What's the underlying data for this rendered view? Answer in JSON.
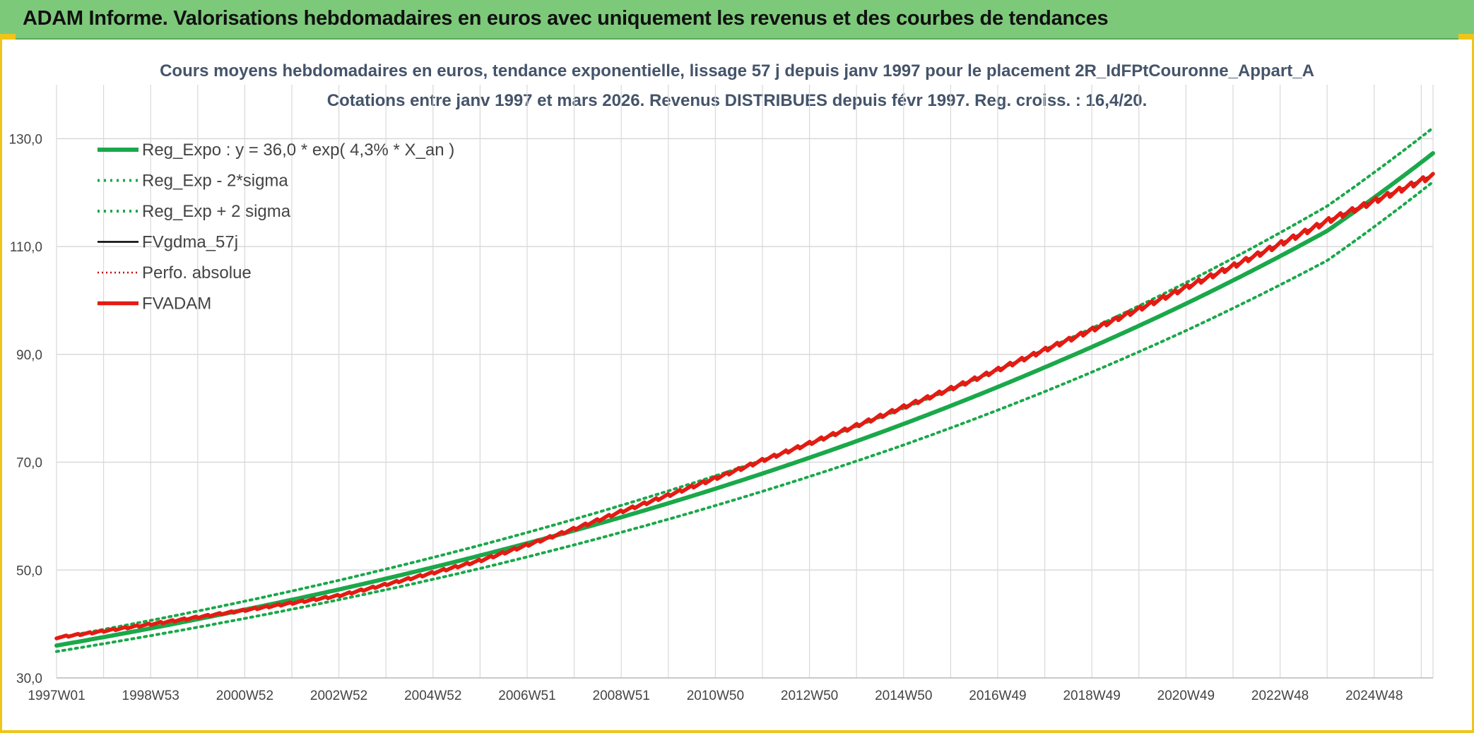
{
  "header": {
    "title": "ADAM Informe. Valorisations hebdomadaires en euros avec uniquement les revenus et des courbes de tendances"
  },
  "chart_data": {
    "type": "line",
    "title_line1": "Cours moyens hebdomadaires en euros, tendance exponentielle, lissage 57 j depuis janv 1997 pour le placement 2R_IdFPtCouronne_Appart_A",
    "title_line2": "Cotations entre janv 1997 et mars 2026. Revenus DISTRIBUES depuis févr 1997. Reg. croiss. : 16,4/20.",
    "ylim": [
      30,
      140
    ],
    "yticks": [
      30,
      50,
      70,
      90,
      110,
      130
    ],
    "ytick_labels": [
      "30,0",
      "50,0",
      "70,0",
      "90,0",
      "110,0",
      "130,0"
    ],
    "xlim": [
      1997.0,
      2026.25
    ],
    "xticks": [
      1997.0,
      1999.0,
      2001.0,
      2003.0,
      2005.0,
      2007.0,
      2009.0,
      2011.0,
      2013.0,
      2015.0,
      2017.0,
      2019.0,
      2021.0,
      2023.0,
      2025.0
    ],
    "xtick_labels": [
      "1997W01",
      "1998W53",
      "2000W52",
      "2002W52",
      "2004W52",
      "2006W51",
      "2008W51",
      "2010W50",
      "2012W50",
      "2014W50",
      "2016W49",
      "2018W49",
      "2020W49",
      "2022W48",
      "2024W48"
    ],
    "grid": true,
    "legend_position": "top-left",
    "colors": {
      "reg_expo": "#1aa84a",
      "sigma": "#1aa84a",
      "fvgdma": "#000000",
      "perfo": "#c00000",
      "fvadam": "#e41b13",
      "grid": "#d9d9d9"
    },
    "series": [
      {
        "name": "Reg_Expo : y = 36,0 * exp( 4,3% *  X_an )",
        "style": "solid-thick",
        "x": [
          1997.0,
          2000.0,
          2003.0,
          2006.0,
          2009.0,
          2012.0,
          2015.0,
          2018.0,
          2021.0,
          2024.0,
          2026.25
        ],
        "y": [
          36.0,
          40.9,
          46.4,
          52.7,
          59.8,
          67.9,
          77.1,
          87.6,
          99.4,
          112.9,
          127.3
        ]
      },
      {
        "name": "Reg_Exp - 2*sigma",
        "style": "dotted",
        "x": [
          1997.0,
          2000.0,
          2003.0,
          2006.0,
          2009.0,
          2012.0,
          2015.0,
          2018.0,
          2021.0,
          2024.0,
          2026.25
        ],
        "y": [
          34.9,
          39.4,
          44.5,
          50.3,
          57.0,
          64.6,
          73.2,
          83.1,
          94.4,
          107.4,
          122.0
        ]
      },
      {
        "name": "Reg_Exp + 2 sigma",
        "style": "dotted",
        "x": [
          1997.0,
          2000.0,
          2003.0,
          2006.0,
          2009.0,
          2012.0,
          2015.0,
          2018.0,
          2021.0,
          2024.0,
          2026.25
        ],
        "y": [
          37.4,
          42.4,
          48.1,
          54.6,
          62.0,
          70.4,
          80.0,
          90.9,
          103.3,
          117.5,
          132.0
        ]
      },
      {
        "name": "FVgdma_57j",
        "style": "solid-thin",
        "x": [
          1997.0,
          2000.0,
          2003.0,
          2006.0,
          2009.0,
          2012.0,
          2015.0,
          2018.0,
          2021.0,
          2024.0,
          2026.25
        ],
        "y": [
          37.5,
          41.3,
          45.3,
          51.8,
          60.9,
          70.4,
          80.3,
          90.9,
          102.5,
          114.8,
          123.3
        ]
      },
      {
        "name": "Perfo. absolue",
        "style": "dotted-thin",
        "x": [
          1997.0,
          2000.0,
          2003.0,
          2006.0,
          2009.0,
          2012.0,
          2015.0,
          2018.0,
          2021.0,
          2024.0,
          2026.25
        ],
        "y": [
          37.5,
          41.3,
          45.3,
          51.8,
          60.9,
          70.4,
          80.3,
          90.9,
          102.5,
          114.8,
          123.3
        ]
      },
      {
        "name": "FVADAM",
        "style": "solid-thick-stepped",
        "x": [
          1997.0,
          2000.0,
          2003.0,
          2006.0,
          2009.0,
          2012.0,
          2015.0,
          2018.0,
          2021.0,
          2024.0,
          2026.25
        ],
        "y": [
          37.5,
          41.3,
          45.3,
          51.8,
          60.9,
          70.4,
          80.3,
          90.9,
          102.5,
          114.8,
          123.3
        ]
      }
    ]
  }
}
